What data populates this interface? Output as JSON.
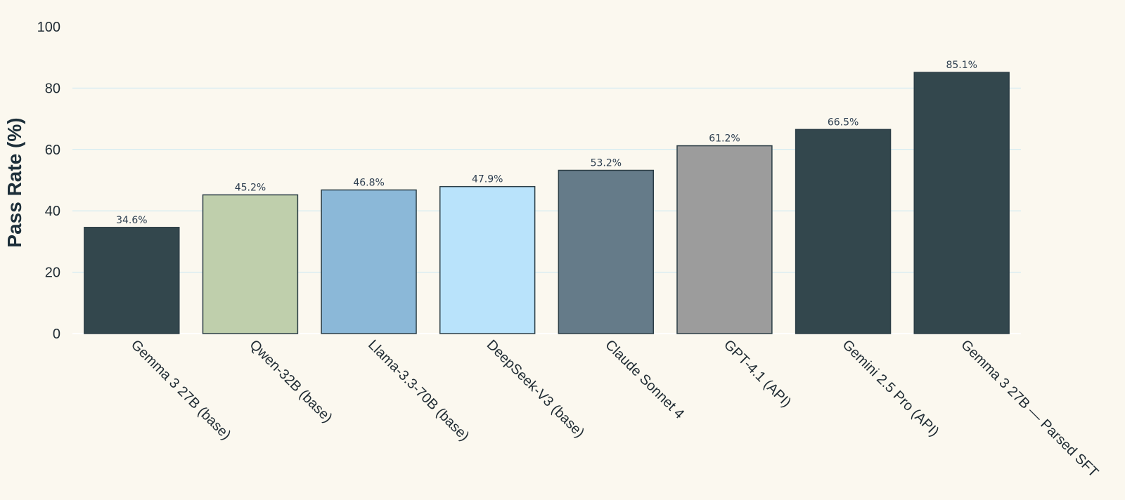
{
  "chart_data": {
    "type": "bar",
    "title": "",
    "xlabel": "",
    "ylabel": "Pass Rate (%)",
    "ylim": [
      0,
      100
    ],
    "yticks": [
      "0",
      "20",
      "40",
      "60",
      "80",
      "100"
    ],
    "grid": true,
    "legend": "none",
    "categories": [
      "Gemma 3 27B (base)",
      "Qwen-32B (base)",
      "Llama-3.3-70B (base)",
      "DeepSeek-V3 (base)",
      "Claude Sonnet 4",
      "GPT-4.1 (API)",
      "Gemini 2.5 Pro (API)",
      "Gemma 3 27B — Parsed SFT"
    ],
    "values": [
      34.6,
      45.2,
      46.8,
      47.9,
      53.2,
      61.2,
      66.5,
      85.1
    ],
    "value_labels": [
      "34.6%",
      "45.2%",
      "46.8%",
      "47.9%",
      "53.2%",
      "61.2%",
      "66.5%",
      "85.1%"
    ],
    "colors": [
      "#33474d",
      "#bfcfac",
      "#8bb8d8",
      "#b9e3fb",
      "#657b89",
      "#9c9c9c",
      "#33474d",
      "#33474d"
    ],
    "bar_outline_color": "#2b3d45",
    "grid_color": "#c9e7f2",
    "background_color": "#fbf8ef"
  }
}
